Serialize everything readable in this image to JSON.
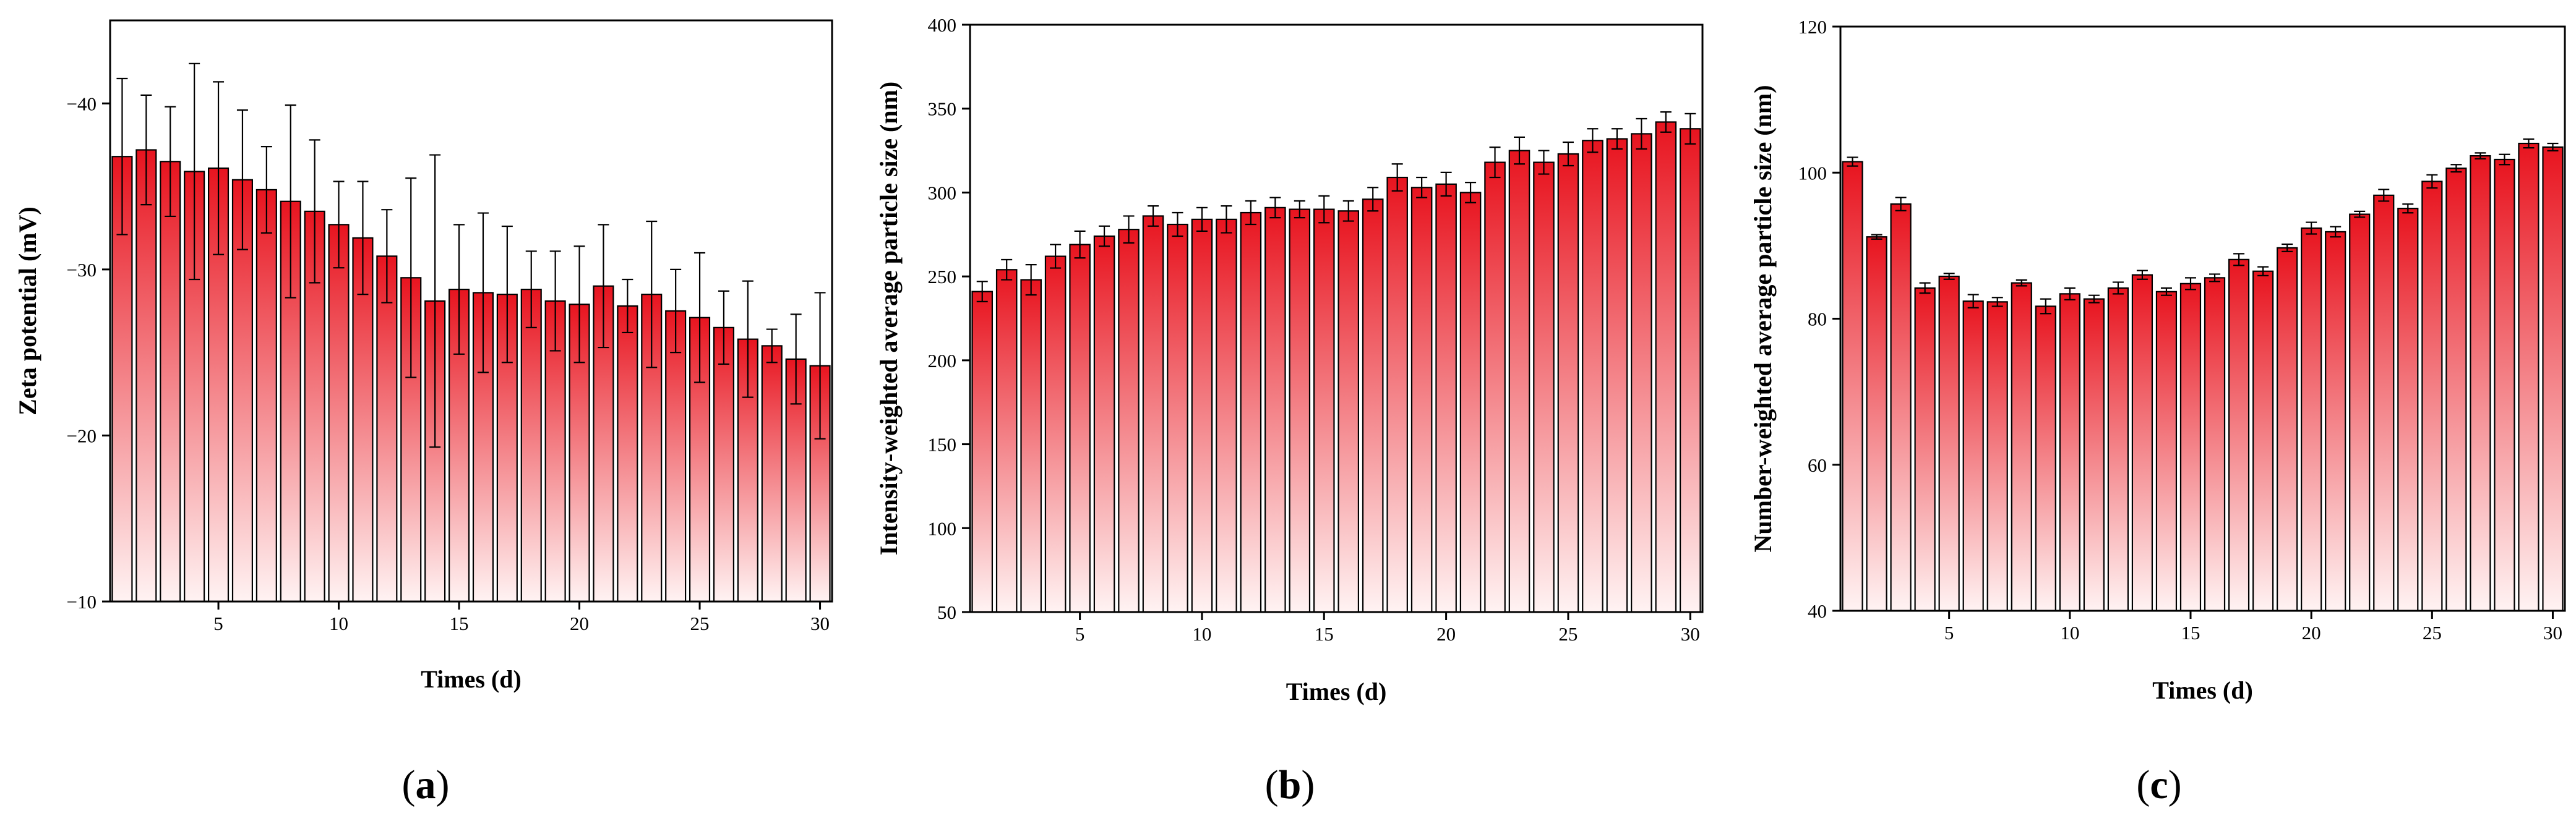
{
  "chart_data": [
    {
      "type": "bar",
      "panel": "a",
      "panel_label": [
        "(",
        "a",
        ")"
      ],
      "xlabel": "Times (d)",
      "ylabel": "Zeta potential (mV)",
      "ylim": [
        -10,
        -45
      ],
      "yticks": [
        -10,
        -20,
        -30,
        -40
      ],
      "ytick_labels": [
        "−10",
        "−20",
        "−30",
        "−40"
      ],
      "xticks": [
        5,
        10,
        15,
        20,
        25,
        30
      ],
      "xtick_labels": [
        "5",
        "10",
        "15",
        "20",
        "25",
        "30"
      ],
      "x": [
        1,
        2,
        3,
        4,
        5,
        6,
        7,
        8,
        9,
        10,
        11,
        12,
        13,
        14,
        15,
        16,
        17,
        18,
        19,
        20,
        21,
        22,
        23,
        24,
        25,
        26,
        27,
        28,
        29,
        30
      ],
      "values": [
        -36.8,
        -37.2,
        -36.5,
        -35.9,
        -36.1,
        -35.4,
        -34.8,
        -34.1,
        -33.5,
        -32.7,
        -31.9,
        -30.8,
        -29.5,
        -28.1,
        -28.8,
        -28.6,
        -28.5,
        -28.8,
        -28.1,
        -27.9,
        -29.0,
        -27.8,
        -28.5,
        -27.5,
        -27.1,
        -26.5,
        -25.8,
        -25.4,
        -24.6,
        -24.2
      ],
      "errors": [
        4.7,
        3.3,
        3.3,
        6.5,
        5.2,
        4.2,
        2.6,
        5.8,
        4.3,
        2.6,
        3.4,
        2.8,
        6.0,
        8.8,
        3.9,
        4.8,
        4.1,
        2.3,
        3.0,
        3.5,
        3.7,
        1.6,
        4.4,
        2.5,
        3.9,
        2.2,
        3.5,
        1.0,
        2.7,
        4.4
      ],
      "colors": {
        "bar_top": "#e8141f",
        "bar_bottom": "#fff3f3",
        "edge": "#000000"
      }
    },
    {
      "type": "bar",
      "panel": "b",
      "panel_label": [
        "(",
        "b",
        ")"
      ],
      "xlabel": "Times (d)",
      "ylabel": "Intensity-weighted average particle size (nm)",
      "ylim": [
        50,
        400
      ],
      "yticks": [
        50,
        100,
        150,
        200,
        250,
        300,
        350,
        400
      ],
      "ytick_labels": [
        "50",
        "100",
        "150",
        "200",
        "250",
        "300",
        "350",
        "400"
      ],
      "xticks": [
        5,
        10,
        15,
        20,
        25,
        30
      ],
      "xtick_labels": [
        "5",
        "10",
        "15",
        "20",
        "25",
        "30"
      ],
      "x": [
        1,
        2,
        3,
        4,
        5,
        6,
        7,
        8,
        9,
        10,
        11,
        12,
        13,
        14,
        15,
        16,
        17,
        18,
        19,
        20,
        21,
        22,
        23,
        24,
        25,
        26,
        27,
        28,
        29,
        30
      ],
      "values": [
        241,
        254,
        248,
        262,
        269,
        274,
        278,
        286,
        281,
        284,
        284,
        288,
        291,
        290,
        290,
        289,
        296,
        309,
        303,
        305,
        300,
        318,
        325,
        318,
        323,
        331,
        332,
        335,
        342,
        338
      ],
      "errors": [
        6,
        6,
        9,
        7,
        8,
        6,
        8,
        6,
        7,
        7,
        8,
        7,
        6,
        5,
        8,
        6,
        7,
        8,
        6,
        7,
        6,
        9,
        8,
        7,
        7,
        7,
        6,
        9,
        6,
        9
      ],
      "colors": {
        "bar_top": "#e8141f",
        "bar_bottom": "#fff3f3",
        "edge": "#000000"
      }
    },
    {
      "type": "bar",
      "panel": "c",
      "panel_label": [
        "(",
        "c",
        ")"
      ],
      "xlabel": "Times (d)",
      "ylabel": "Number-weighted average particle size (nm)",
      "ylim": [
        40,
        120
      ],
      "yticks": [
        40,
        60,
        80,
        100,
        120
      ],
      "ytick_labels": [
        "40",
        "60",
        "80",
        "100",
        "120"
      ],
      "xticks": [
        5,
        10,
        15,
        20,
        25,
        30
      ],
      "xtick_labels": [
        "5",
        "10",
        "15",
        "20",
        "25",
        "30"
      ],
      "x": [
        1,
        2,
        3,
        4,
        5,
        6,
        7,
        8,
        9,
        10,
        11,
        12,
        13,
        14,
        15,
        16,
        17,
        18,
        19,
        20,
        21,
        22,
        23,
        24,
        25,
        26,
        27,
        28,
        29,
        30
      ],
      "values": [
        101.5,
        91.2,
        95.7,
        84.2,
        85.8,
        82.4,
        82.3,
        84.9,
        81.7,
        83.4,
        82.7,
        84.2,
        86.0,
        83.7,
        84.8,
        85.6,
        88.1,
        86.5,
        89.7,
        92.4,
        91.9,
        94.3,
        96.9,
        95.1,
        98.8,
        100.6,
        102.3,
        101.8,
        104.0,
        103.5
      ],
      "errors": [
        0.6,
        0.3,
        0.9,
        0.7,
        0.4,
        0.9,
        0.6,
        0.4,
        1.0,
        0.8,
        0.5,
        0.8,
        0.6,
        0.5,
        0.8,
        0.5,
        0.8,
        0.6,
        0.5,
        0.8,
        0.7,
        0.4,
        0.8,
        0.6,
        0.9,
        0.5,
        0.4,
        0.7,
        0.6,
        0.5
      ],
      "colors": {
        "bar_top": "#e8141f",
        "bar_bottom": "#fff3f3",
        "edge": "#000000"
      }
    }
  ]
}
